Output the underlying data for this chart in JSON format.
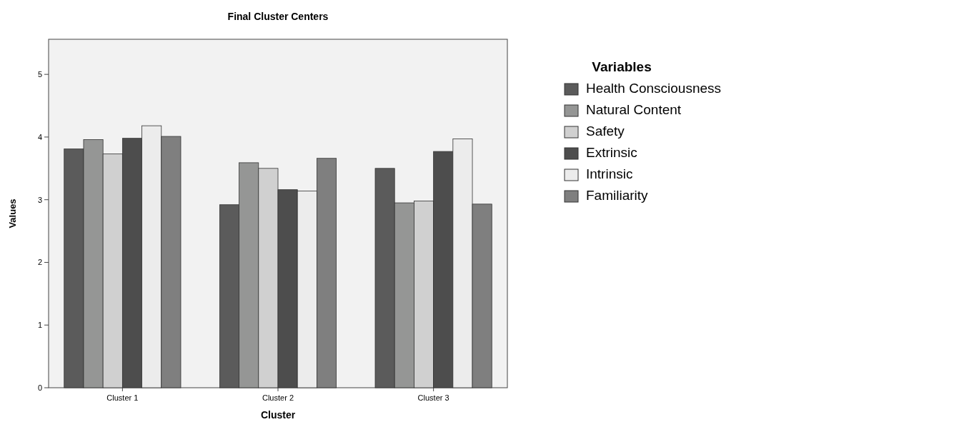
{
  "chart_data": {
    "type": "bar",
    "title": "Final Cluster Centers",
    "xlabel": "Cluster",
    "ylabel": "Values",
    "legend_title": "Variables",
    "legend": "right",
    "grid": false,
    "categories": [
      "Cluster 1",
      "Cluster 2",
      "Cluster 3"
    ],
    "ylim": [
      0,
      5.56
    ],
    "yticks": [
      0,
      1,
      2,
      3,
      4,
      5
    ],
    "series": [
      {
        "name": "Health Consciousness",
        "color": "#5b5b5b",
        "values": [
          3.81,
          2.92,
          3.5
        ]
      },
      {
        "name": "Natural Content",
        "color": "#959695",
        "values": [
          3.96,
          3.59,
          2.95
        ]
      },
      {
        "name": "Safety",
        "color": "#d0d0d0",
        "values": [
          3.73,
          3.5,
          2.98
        ]
      },
      {
        "name": "Extrinsic",
        "color": "#4d4d4d",
        "values": [
          3.98,
          3.16,
          3.77
        ]
      },
      {
        "name": "Intrinsic",
        "color": "#ececec",
        "values": [
          4.18,
          3.14,
          3.97
        ]
      },
      {
        "name": "Familiarity",
        "color": "#7f7f7f",
        "values": [
          4.01,
          3.66,
          2.93
        ]
      }
    ]
  }
}
